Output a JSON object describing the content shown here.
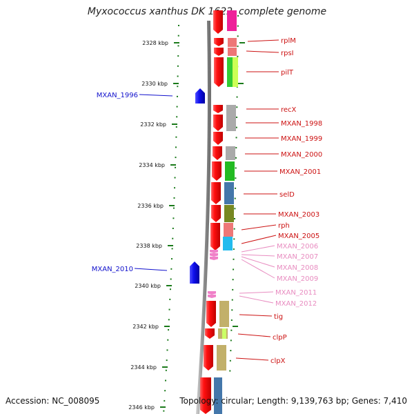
{
  "header": {
    "title": "Myxococcus xanthus DK 1622, complete genome"
  },
  "footer": {
    "accession": "Accession: NC_008095",
    "summary": "Topology: circular; Length: 9,139,763 bp; Genes: 7,410"
  },
  "scale": {
    "ticks": [
      "2328 kbp",
      "2330 kbp",
      "2332 kbp",
      "2334 kbp",
      "2336 kbp",
      "2338 kbp",
      "2340 kbp",
      "2342 kbp",
      "2344 kbp",
      "2346 kbp"
    ]
  },
  "colors": {
    "forward_gene": "#1010e0",
    "reverse_gene": "#ee1111",
    "rna_gene": "#f080c8",
    "label_red": "#cc1111",
    "label_blue": "#1010cc",
    "label_pink": "#e88cc0",
    "tick_green": "#1a7a1a"
  },
  "genes": {
    "left": [
      "MXAN_1996",
      "MXAN_2010"
    ],
    "right": [
      "rplM",
      "rpsI",
      "pilT",
      "recX",
      "MXAN_1998",
      "MXAN_1999",
      "MXAN_2000",
      "MXAN_2001",
      "selD",
      "MXAN_2003",
      "rph",
      "MXAN_2005",
      "MXAN_2006",
      "MXAN_2007",
      "MXAN_2008",
      "MXAN_2009",
      "MXAN_2011",
      "MXAN_2012",
      "tig",
      "clpP",
      "clpX"
    ]
  }
}
